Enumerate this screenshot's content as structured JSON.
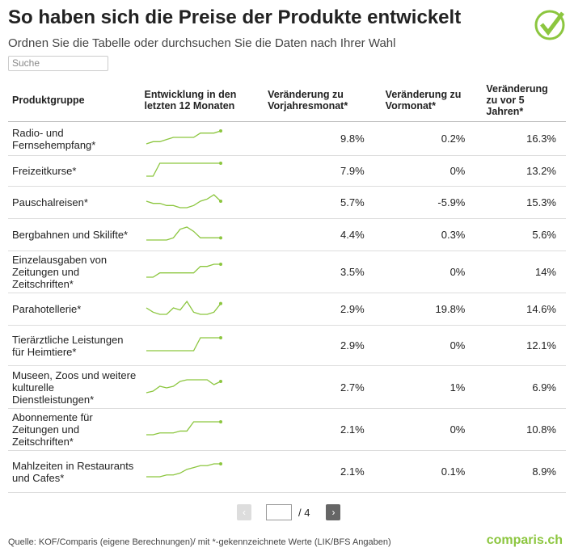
{
  "header": {
    "title": "So haben sich die Preise der Produkte entwickelt",
    "subtitle": "Ordnen Sie die Tabelle oder durchsuchen Sie die Daten nach Ihrer Wahl",
    "search_placeholder": "Suche"
  },
  "table": {
    "columns": [
      "Produktgruppe",
      "Entwicklung in den letzten 12 Monaten",
      "Veränderung zu Vorjahresmonat*",
      "Veränderung zu Vormonat*",
      "Veränderung zu vor 5 Jahren*"
    ],
    "rows": [
      {
        "product": "Radio- und Fernsehempfang*",
        "trend": [
          1,
          2,
          2,
          3,
          4,
          4,
          4,
          4,
          6,
          6,
          6,
          7
        ],
        "yoy": "9.8%",
        "mom": "0.2%",
        "y5": "16.3%"
      },
      {
        "product": "Freizeitkurse*",
        "trend": [
          0,
          0,
          8,
          8,
          8,
          8,
          8,
          8,
          8,
          8,
          8,
          8
        ],
        "yoy": "7.9%",
        "mom": "0%",
        "y5": "13.2%"
      },
      {
        "product": "Pauschalreisen*",
        "trend": [
          6,
          5,
          5,
          4,
          4,
          3,
          3,
          4,
          6,
          7,
          9,
          6
        ],
        "yoy": "5.7%",
        "mom": "-5.9%",
        "y5": "15.3%"
      },
      {
        "product": "Bergbahnen und Skilifte*",
        "trend": [
          2,
          2,
          2,
          2,
          3,
          7,
          8,
          6,
          3,
          3,
          3,
          3
        ],
        "yoy": "4.4%",
        "mom": "0.3%",
        "y5": "5.6%"
      },
      {
        "product": "Einzelausgaben von Zeitungen und Zeitschriften*",
        "trend": [
          1,
          1,
          3,
          3,
          3,
          3,
          3,
          3,
          6,
          6,
          7,
          7
        ],
        "yoy": "3.5%",
        "mom": "0%",
        "y5": "14%"
      },
      {
        "product": "Parahotellerie*",
        "trend": [
          5,
          3,
          2,
          2,
          5,
          4,
          8,
          3,
          2,
          2,
          3,
          7
        ],
        "yoy": "2.9%",
        "mom": "19.8%",
        "y5": "14.6%"
      },
      {
        "product": "Tierärztliche Leistungen für Heimtiere*",
        "trend": [
          1,
          1,
          1,
          1,
          1,
          1,
          1,
          1,
          8,
          8,
          8,
          8
        ],
        "yoy": "2.9%",
        "mom": "0%",
        "y5": "12.1%"
      },
      {
        "product": "Museen, Zoos und weitere kulturelle Dienstleistungen*",
        "trend": [
          1,
          2,
          5,
          4,
          5,
          8,
          9,
          9,
          9,
          9,
          6,
          8
        ],
        "yoy": "2.7%",
        "mom": "1%",
        "y5": "6.9%"
      },
      {
        "product": "Abonnemente für Zeitungen und Zeitschriften*",
        "trend": [
          1,
          1,
          2,
          2,
          2,
          3,
          3,
          8,
          8,
          8,
          8,
          8
        ],
        "yoy": "2.1%",
        "mom": "0%",
        "y5": "10.8%"
      },
      {
        "product": "Mahlzeiten in Restaurants und Cafes*",
        "trend": [
          1,
          1,
          1,
          2,
          2,
          3,
          5,
          6,
          7,
          7,
          8,
          8
        ],
        "yoy": "2.1%",
        "mom": "0.1%",
        "y5": "8.9%"
      }
    ]
  },
  "pagination": {
    "total": "/ 4"
  },
  "footer": {
    "source": "Quelle: KOF/Comparis (eigene Berechnungen)/ mit *-gekennzeichnete Werte (LIK/BFS Angaben)",
    "logo": "comparis.ch"
  }
}
